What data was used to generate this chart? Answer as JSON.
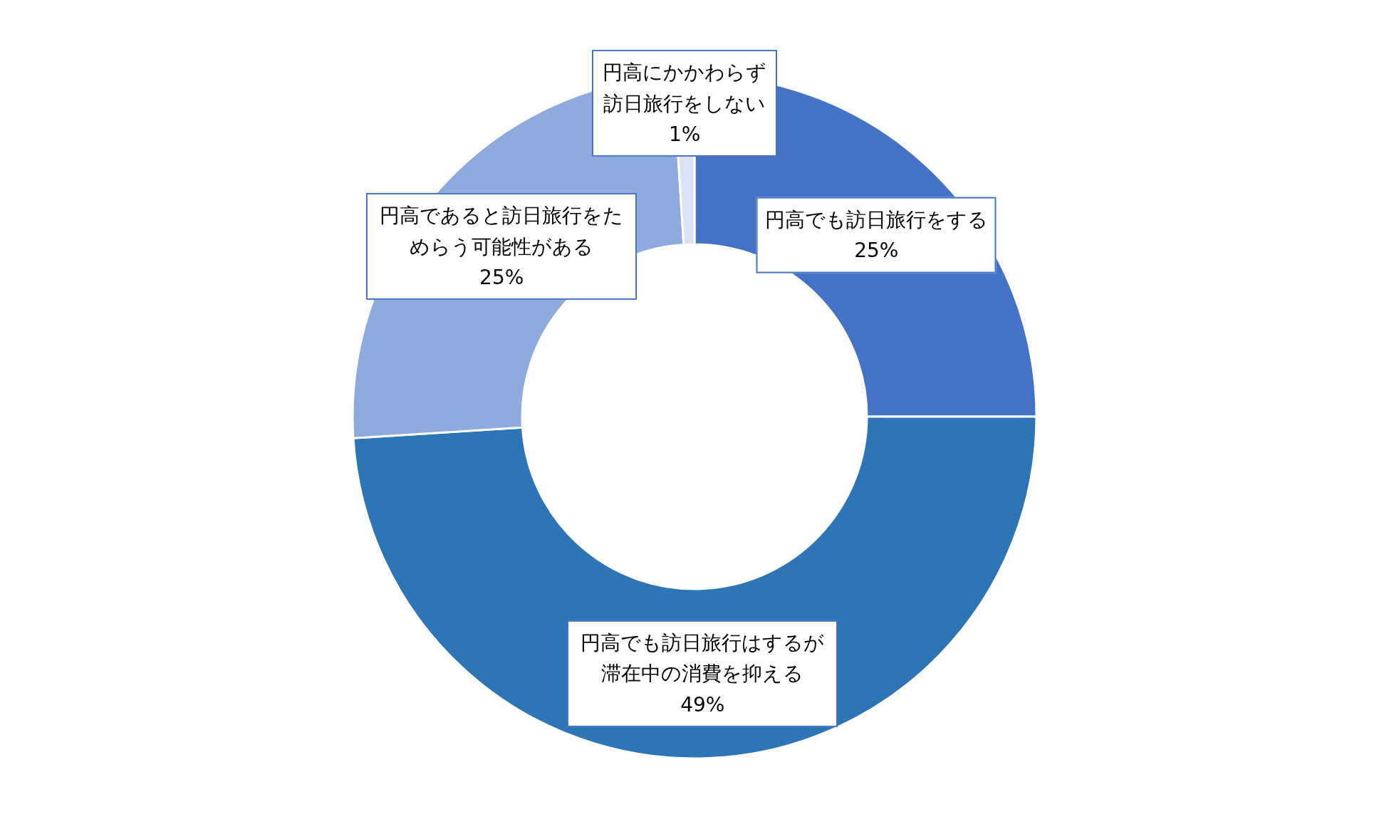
{
  "chart_data": {
    "type": "donut",
    "categories": [
      "円高でも訪日旅行をする",
      "円高でも訪日旅行はするが滞在中の消費を抑える",
      "円高であると訪日旅行をためらう可能性がある",
      "円高にかかわらず訪日旅行をしない"
    ],
    "values": [
      25,
      49,
      25,
      1
    ],
    "colors": [
      "#4472c4",
      "#2e75b6",
      "#8faadc",
      "#dae3f3"
    ],
    "value_labels": [
      "25%",
      "49%",
      "25%",
      "1%"
    ]
  }
}
